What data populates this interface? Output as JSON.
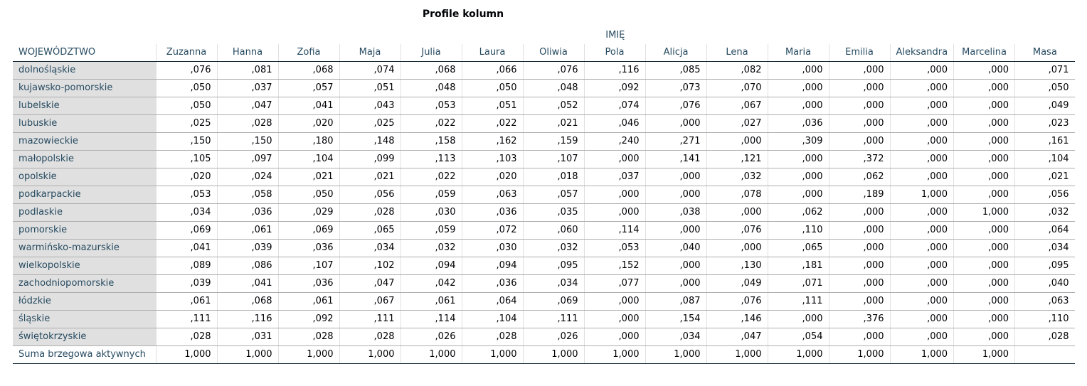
{
  "title": "Profile kolumn",
  "column_variable": "IMIĘ",
  "row_variable": "WOJEWÓDZTWO",
  "columns": [
    "Zuzanna",
    "Hanna",
    "Zofia",
    "Maja",
    "Julia",
    "Laura",
    "Oliwia",
    "Pola",
    "Alicja",
    "Lena",
    "Maria",
    "Emilia",
    "Aleksandra",
    "Marcelina",
    "Masa"
  ],
  "rows": [
    {
      "label": "dolnośląskie",
      "values": [
        ",076",
        ",081",
        ",068",
        ",074",
        ",068",
        ",066",
        ",076",
        ",116",
        ",085",
        ",082",
        ",000",
        ",000",
        ",000",
        ",000",
        ",071"
      ]
    },
    {
      "label": "kujawsko-pomorskie",
      "values": [
        ",050",
        ",037",
        ",057",
        ",051",
        ",048",
        ",050",
        ",048",
        ",092",
        ",073",
        ",070",
        ",000",
        ",000",
        ",000",
        ",000",
        ",050"
      ]
    },
    {
      "label": "lubelskie",
      "values": [
        ",050",
        ",047",
        ",041",
        ",043",
        ",053",
        ",051",
        ",052",
        ",074",
        ",076",
        ",067",
        ",000",
        ",000",
        ",000",
        ",000",
        ",049"
      ]
    },
    {
      "label": "lubuskie",
      "values": [
        ",025",
        ",028",
        ",020",
        ",025",
        ",022",
        ",022",
        ",021",
        ",046",
        ",000",
        ",027",
        ",036",
        ",000",
        ",000",
        ",000",
        ",023"
      ]
    },
    {
      "label": "mazowieckie",
      "values": [
        ",150",
        ",150",
        ",180",
        ",148",
        ",158",
        ",162",
        ",159",
        ",240",
        ",271",
        ",000",
        ",309",
        ",000",
        ",000",
        ",000",
        ",161"
      ]
    },
    {
      "label": "małopolskie",
      "values": [
        ",105",
        ",097",
        ",104",
        ",099",
        ",113",
        ",103",
        ",107",
        ",000",
        ",141",
        ",121",
        ",000",
        ",372",
        ",000",
        ",000",
        ",104"
      ]
    },
    {
      "label": "opolskie",
      "values": [
        ",020",
        ",024",
        ",021",
        ",021",
        ",022",
        ",020",
        ",018",
        ",037",
        ",000",
        ",032",
        ",000",
        ",062",
        ",000",
        ",000",
        ",021"
      ]
    },
    {
      "label": "podkarpackie",
      "values": [
        ",053",
        ",058",
        ",050",
        ",056",
        ",059",
        ",063",
        ",057",
        ",000",
        ",000",
        ",078",
        ",000",
        ",189",
        "1,000",
        ",000",
        ",056"
      ]
    },
    {
      "label": "podlaskie",
      "values": [
        ",034",
        ",036",
        ",029",
        ",028",
        ",030",
        ",036",
        ",035",
        ",000",
        ",038",
        ",000",
        ",062",
        ",000",
        ",000",
        "1,000",
        ",032"
      ]
    },
    {
      "label": "pomorskie",
      "values": [
        ",069",
        ",061",
        ",069",
        ",065",
        ",059",
        ",072",
        ",060",
        ",114",
        ",000",
        ",076",
        ",110",
        ",000",
        ",000",
        ",000",
        ",064"
      ]
    },
    {
      "label": "warmińsko-mazurskie",
      "values": [
        ",041",
        ",039",
        ",036",
        ",034",
        ",032",
        ",030",
        ",032",
        ",053",
        ",040",
        ",000",
        ",065",
        ",000",
        ",000",
        ",000",
        ",034"
      ]
    },
    {
      "label": "wielkopolskie",
      "values": [
        ",089",
        ",086",
        ",107",
        ",102",
        ",094",
        ",094",
        ",095",
        ",152",
        ",000",
        ",130",
        ",181",
        ",000",
        ",000",
        ",000",
        ",095"
      ]
    },
    {
      "label": "zachodniopomorskie",
      "values": [
        ",039",
        ",041",
        ",036",
        ",047",
        ",042",
        ",036",
        ",034",
        ",077",
        ",000",
        ",049",
        ",071",
        ",000",
        ",000",
        ",000",
        ",040"
      ]
    },
    {
      "label": "łódzkie",
      "values": [
        ",061",
        ",068",
        ",061",
        ",067",
        ",061",
        ",064",
        ",069",
        ",000",
        ",087",
        ",076",
        ",111",
        ",000",
        ",000",
        ",000",
        ",063"
      ]
    },
    {
      "label": "śląskie",
      "values": [
        ",111",
        ",116",
        ",092",
        ",111",
        ",114",
        ",104",
        ",111",
        ",000",
        ",154",
        ",146",
        ",000",
        ",376",
        ",000",
        ",000",
        ",110"
      ]
    },
    {
      "label": "świętokrzyskie",
      "values": [
        ",028",
        ",031",
        ",028",
        ",028",
        ",026",
        ",028",
        ",026",
        ",000",
        ",034",
        ",047",
        ",054",
        ",000",
        ",000",
        ",000",
        ",028"
      ]
    }
  ],
  "total_row": {
    "label": "Suma brzegowa aktywnych",
    "values": [
      "1,000",
      "1,000",
      "1,000",
      "1,000",
      "1,000",
      "1,000",
      "1,000",
      "1,000",
      "1,000",
      "1,000",
      "1,000",
      "1,000",
      "1,000",
      "1,000",
      ""
    ]
  }
}
